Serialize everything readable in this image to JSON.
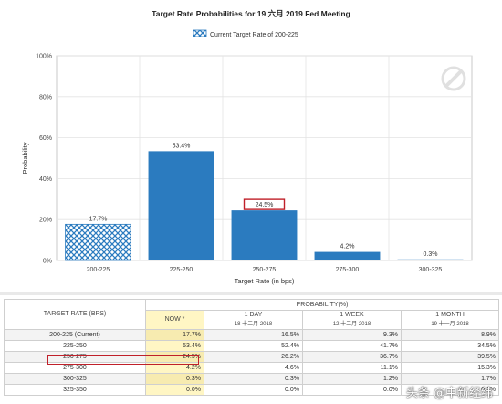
{
  "chart_data": {
    "type": "bar",
    "title": "Target Rate Probabilities for 19 六月 2019 Fed Meeting",
    "legend": {
      "label": "Current Target Rate of 200-225",
      "placement": "top-center"
    },
    "categories": [
      "200-225",
      "225-250",
      "250-275",
      "275-300",
      "300-325"
    ],
    "values": [
      17.7,
      53.4,
      24.5,
      4.2,
      0.3
    ],
    "value_labels": [
      "17.7%",
      "53.4%",
      "24.5%",
      "4.2%",
      "0.3%"
    ],
    "current_index": 0,
    "highlighted_index": 2,
    "xlabel": "Target Rate (in bps)",
    "ylabel": "Probability",
    "ylim": [
      0,
      100
    ],
    "yticks": [
      0,
      20,
      40,
      60,
      80,
      100
    ],
    "ytick_labels": [
      "0%",
      "20%",
      "40%",
      "60%",
      "80%",
      "100%"
    ],
    "grid": true,
    "colors": {
      "bar": "#2b7bbf",
      "current_pattern": "#2b7bbf",
      "highlight": "#c0202a"
    }
  },
  "table": {
    "rate_header": "TARGET RATE (BPS)",
    "probability_header": "PROBABILITY(%)",
    "columns": [
      {
        "label": "NOW",
        "marker": "*",
        "sub": ""
      },
      {
        "label": "1 DAY",
        "sub": "18 十二月 2018"
      },
      {
        "label": "1 WEEK",
        "sub": "12 十二月 2018"
      },
      {
        "label": "1 MONTH",
        "sub": "19 十一月 2018"
      }
    ],
    "rows": [
      {
        "rate": "200-225 (Current)",
        "values": [
          "17.7%",
          "16.5%",
          "9.3%",
          "8.9%"
        ]
      },
      {
        "rate": "225-250",
        "values": [
          "53.4%",
          "52.4%",
          "41.7%",
          "34.5%"
        ]
      },
      {
        "rate": "250-275",
        "values": [
          "24.5%",
          "26.2%",
          "36.7%",
          "39.5%"
        ]
      },
      {
        "rate": "275-300",
        "values": [
          "4.2%",
          "4.6%",
          "11.1%",
          "15.3%"
        ]
      },
      {
        "rate": "300-325",
        "values": [
          "0.3%",
          "0.3%",
          "1.2%",
          "1.7%"
        ]
      },
      {
        "rate": "325-350",
        "values": [
          "0.0%",
          "0.0%",
          "0.0%",
          "0.1%"
        ]
      }
    ]
  },
  "watermark": "头条 @中新经纬"
}
